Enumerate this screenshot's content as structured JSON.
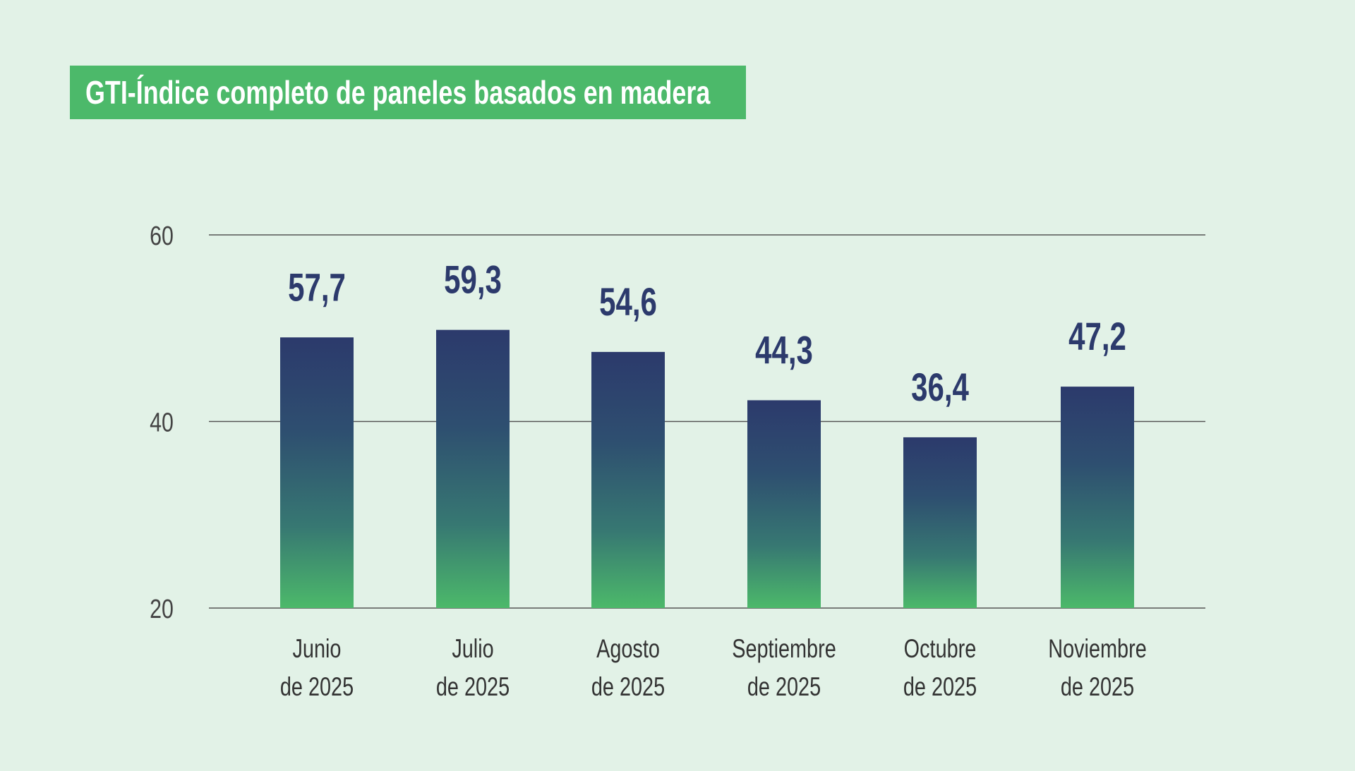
{
  "chart_data": {
    "type": "bar",
    "title": "GTI-Índice completo de paneles basados en madera",
    "categories": [
      [
        "Junio",
        "de 2025"
      ],
      [
        "Julio",
        "de 2025"
      ],
      [
        "Agosto",
        "de 2025"
      ],
      [
        "Septiembre",
        "de 2025"
      ],
      [
        "Octubre",
        "de 2025"
      ],
      [
        "Noviembre",
        "de 2025"
      ]
    ],
    "values": [
      57.7,
      59.3,
      54.6,
      44.3,
      36.4,
      47.2
    ],
    "value_labels": [
      "57,7",
      "59,3",
      "54,6",
      "44,3",
      "36,4",
      "47,2"
    ],
    "yticks": [
      20,
      40,
      60
    ],
    "ylim": [
      20,
      60
    ],
    "grid": true,
    "xlabel": "",
    "ylabel": "",
    "colors": {
      "title_bg": "#4cb96a",
      "bar_top": "#2c3a6c",
      "bar_bottom": "#4cb96a",
      "value_label": "#2c3a6c",
      "background": "#e2f2e7",
      "grid": "#555555"
    }
  }
}
